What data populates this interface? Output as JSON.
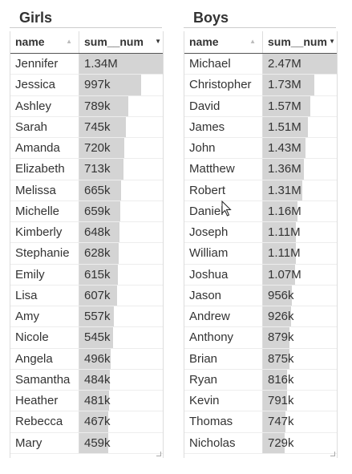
{
  "girls": {
    "title": "Girls",
    "columns": [
      "name",
      "sum__num"
    ],
    "rows": [
      {
        "name": "Jennifer",
        "sum": "1.34M",
        "value": 1340000
      },
      {
        "name": "Jessica",
        "sum": "997k",
        "value": 997000
      },
      {
        "name": "Ashley",
        "sum": "789k",
        "value": 789000
      },
      {
        "name": "Sarah",
        "sum": "745k",
        "value": 745000
      },
      {
        "name": "Amanda",
        "sum": "720k",
        "value": 720000
      },
      {
        "name": "Elizabeth",
        "sum": "713k",
        "value": 713000
      },
      {
        "name": "Melissa",
        "sum": "665k",
        "value": 665000
      },
      {
        "name": "Michelle",
        "sum": "659k",
        "value": 659000
      },
      {
        "name": "Kimberly",
        "sum": "648k",
        "value": 648000
      },
      {
        "name": "Stephanie",
        "sum": "628k",
        "value": 628000
      },
      {
        "name": "Emily",
        "sum": "615k",
        "value": 615000
      },
      {
        "name": "Lisa",
        "sum": "607k",
        "value": 607000
      },
      {
        "name": "Amy",
        "sum": "557k",
        "value": 557000
      },
      {
        "name": "Nicole",
        "sum": "545k",
        "value": 545000
      },
      {
        "name": "Angela",
        "sum": "496k",
        "value": 496000
      },
      {
        "name": "Samantha",
        "sum": "484k",
        "value": 484000
      },
      {
        "name": "Heather",
        "sum": "481k",
        "value": 481000
      },
      {
        "name": "Rebecca",
        "sum": "467k",
        "value": 467000
      },
      {
        "name": "Mary",
        "sum": "459k",
        "value": 459000
      }
    ]
  },
  "boys": {
    "title": "Boys",
    "columns": [
      "name",
      "sum__num"
    ],
    "rows": [
      {
        "name": "Michael",
        "sum": "2.47M",
        "value": 2470000
      },
      {
        "name": "Christopher",
        "sum": "1.73M",
        "value": 1730000
      },
      {
        "name": "David",
        "sum": "1.57M",
        "value": 1570000
      },
      {
        "name": "James",
        "sum": "1.51M",
        "value": 1510000
      },
      {
        "name": "John",
        "sum": "1.43M",
        "value": 1430000
      },
      {
        "name": "Matthew",
        "sum": "1.36M",
        "value": 1360000
      },
      {
        "name": "Robert",
        "sum": "1.31M",
        "value": 1310000
      },
      {
        "name": "Daniel",
        "sum": "1.16M",
        "value": 1160000
      },
      {
        "name": "Joseph",
        "sum": "1.11M",
        "value": 1110000
      },
      {
        "name": "William",
        "sum": "1.11M",
        "value": 1110000
      },
      {
        "name": "Joshua",
        "sum": "1.07M",
        "value": 1070000
      },
      {
        "name": "Jason",
        "sum": "956k",
        "value": 956000
      },
      {
        "name": "Andrew",
        "sum": "926k",
        "value": 926000
      },
      {
        "name": "Anthony",
        "sum": "879k",
        "value": 879000
      },
      {
        "name": "Brian",
        "sum": "875k",
        "value": 875000
      },
      {
        "name": "Ryan",
        "sum": "816k",
        "value": 816000
      },
      {
        "name": "Kevin",
        "sum": "791k",
        "value": 791000
      },
      {
        "name": "Thomas",
        "sum": "747k",
        "value": 747000
      },
      {
        "name": "Nicholas",
        "sum": "729k",
        "value": 729000
      }
    ]
  },
  "colors": {
    "bar": "#d4d4d4",
    "header_border": "#555555"
  },
  "icons": {
    "sort": "sort-icon",
    "sort_active": "sort-desc-icon",
    "cursor": "mouse-pointer-icon"
  }
}
